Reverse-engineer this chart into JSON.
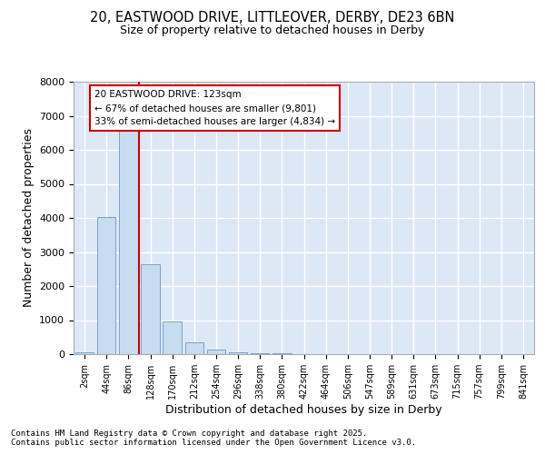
{
  "title_line1": "20, EASTWOOD DRIVE, LITTLEOVER, DERBY, DE23 6BN",
  "title_line2": "Size of property relative to detached houses in Derby",
  "xlabel": "Distribution of detached houses by size in Derby",
  "ylabel": "Number of detached properties",
  "categories": [
    "2sqm",
    "44sqm",
    "86sqm",
    "128sqm",
    "170sqm",
    "212sqm",
    "254sqm",
    "296sqm",
    "338sqm",
    "380sqm",
    "422sqm",
    "464sqm",
    "506sqm",
    "547sqm",
    "589sqm",
    "631sqm",
    "673sqm",
    "715sqm",
    "757sqm",
    "799sqm",
    "841sqm"
  ],
  "values": [
    50,
    4020,
    6620,
    2640,
    960,
    340,
    130,
    65,
    35,
    18,
    10,
    5,
    3,
    2,
    1,
    1,
    0,
    0,
    0,
    0,
    0
  ],
  "bar_color": "#c8dcf0",
  "bar_edge_color": "#5588bb",
  "property_line_color": "#cc0000",
  "annotation_text": "20 EASTWOOD DRIVE: 123sqm\n← 67% of detached houses are smaller (9,801)\n33% of semi-detached houses are larger (4,834) →",
  "annotation_box_edge_color": "#cc0000",
  "ylim_max": 8000,
  "yticks": [
    0,
    1000,
    2000,
    3000,
    4000,
    5000,
    6000,
    7000,
    8000
  ],
  "background_color": "#dde8f7",
  "grid_color": "#ffffff",
  "footer_line1": "Contains HM Land Registry data © Crown copyright and database right 2025.",
  "footer_line2": "Contains public sector information licensed under the Open Government Licence v3.0."
}
